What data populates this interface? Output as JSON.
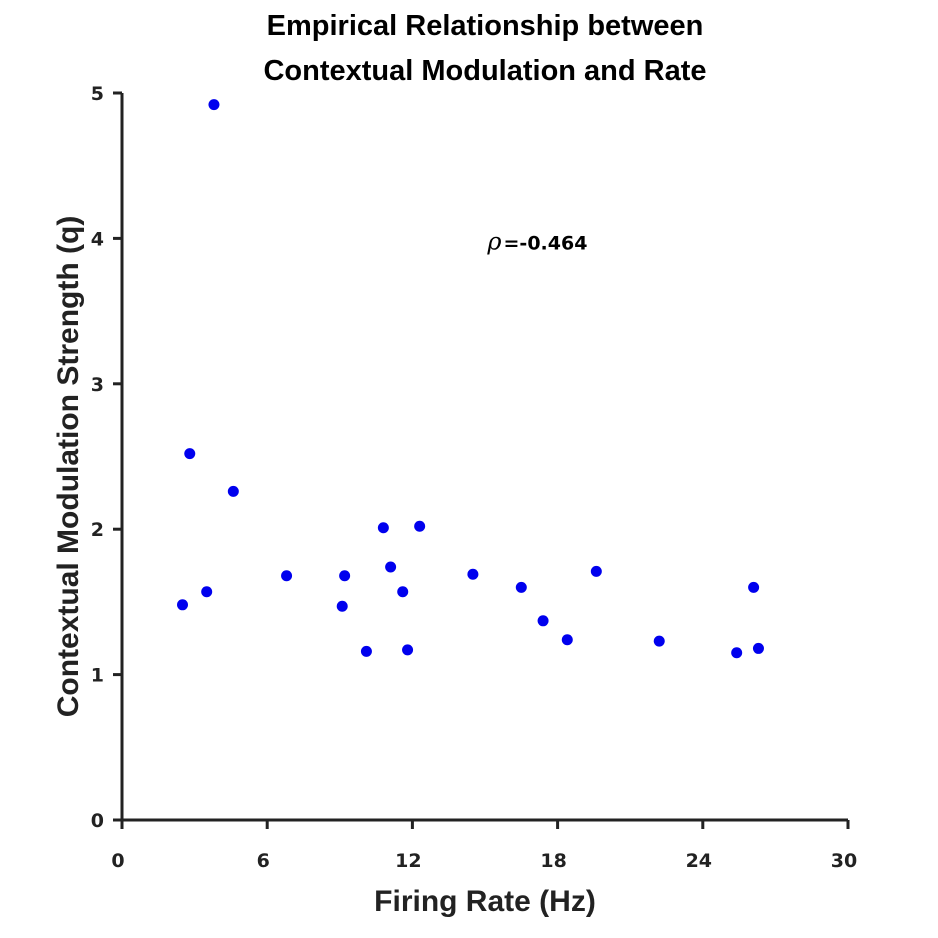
{
  "chart_data": {
    "type": "scatter",
    "title_lines": [
      "Empirical Relationship between",
      "Contextual Modulation and Rate"
    ],
    "xlabel": "Firing Rate (Hz)",
    "ylabel": "Contextual Modulation Strength (q)",
    "xlim": [
      0,
      30
    ],
    "ylim": [
      0,
      5
    ],
    "xticks": [
      0,
      6,
      12,
      18,
      24,
      30
    ],
    "yticks": [
      0,
      1,
      2,
      3,
      4,
      5
    ],
    "grid": false,
    "legend": "none",
    "marker_color": "#0000ee",
    "annotation": {
      "symbol": "ρ",
      "text": "=-0.464",
      "x": 15.1,
      "y": 3.98
    },
    "series": [
      {
        "x": [
          2.5,
          2.8,
          3.5,
          3.8,
          4.6,
          6.8,
          9.1,
          9.2,
          10.1,
          10.8,
          11.1,
          11.6,
          11.8,
          12.3,
          14.5,
          16.5,
          17.4,
          18.4,
          19.6,
          22.2,
          25.4,
          26.1,
          26.3
        ],
        "y": [
          1.48,
          2.52,
          1.57,
          4.92,
          2.26,
          1.68,
          1.47,
          1.68,
          1.16,
          2.01,
          1.74,
          1.57,
          1.17,
          2.02,
          1.69,
          1.6,
          1.37,
          1.24,
          1.71,
          1.23,
          1.15,
          1.6,
          1.18
        ]
      }
    ]
  }
}
